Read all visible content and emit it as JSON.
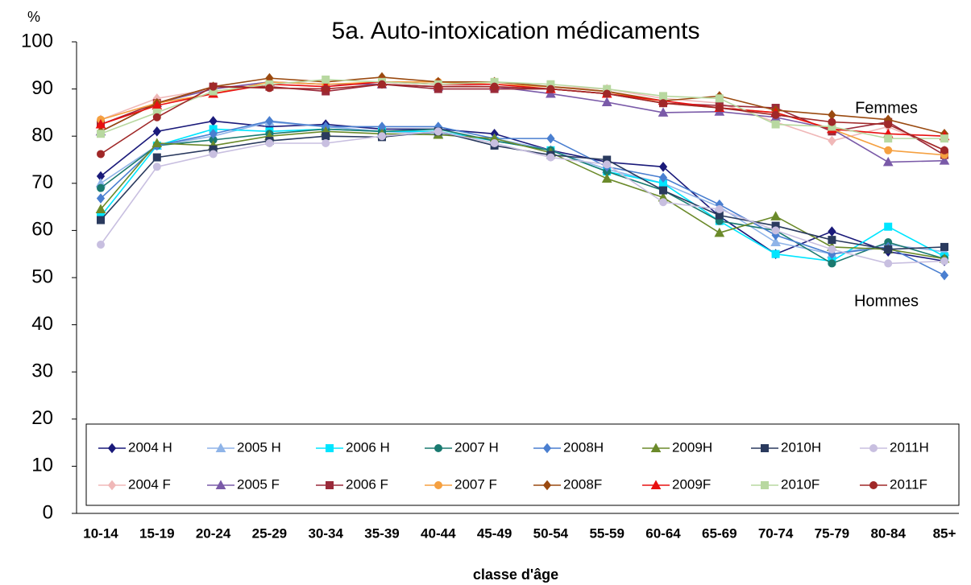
{
  "chart_data": {
    "type": "line",
    "title": "5a. Auto-intoxication médicaments",
    "y_label": "%",
    "x_label": "classe d'âge",
    "annotations": [
      "Femmes",
      "Hommes"
    ],
    "categories": [
      "10-14",
      "15-19",
      "20-24",
      "25-29",
      "30-34",
      "35-39",
      "40-44",
      "45-49",
      "50-54",
      "55-59",
      "60-64",
      "65-69",
      "70-74",
      "75-79",
      "80-84",
      "85+"
    ],
    "ylim": [
      0,
      100
    ],
    "yticks": [
      0,
      10,
      20,
      30,
      40,
      50,
      60,
      70,
      80,
      90,
      100
    ],
    "legend": "bottom",
    "series": [
      {
        "name": "2004 H",
        "color": "#1a1a7a",
        "marker": "diamond",
        "values": [
          71.5,
          81,
          83.2,
          82,
          82.5,
          81.5,
          81.5,
          80.5,
          77,
          74.5,
          73.5,
          63,
          55,
          59.8,
          55.5,
          53.5
        ]
      },
      {
        "name": "2005 H",
        "color": "#8fb4e8",
        "marker": "triangle",
        "values": [
          70,
          78,
          80,
          83,
          82,
          81,
          80.5,
          79.5,
          77,
          73,
          70,
          65,
          57.5,
          55,
          57,
          55.5
        ]
      },
      {
        "name": "2006 H",
        "color": "#00e5ff",
        "marker": "square",
        "values": [
          63,
          78,
          81.5,
          81,
          81.5,
          81,
          81,
          79,
          77,
          72.5,
          70,
          62,
          55,
          53.5,
          60.8,
          54.5
        ]
      },
      {
        "name": "2007 H",
        "color": "#1a7a70",
        "marker": "circle",
        "values": [
          69,
          78,
          79.2,
          80.5,
          81.5,
          81,
          81.5,
          79,
          77,
          72.5,
          68.5,
          62,
          60,
          53,
          57.5,
          54
        ]
      },
      {
        "name": "2008H",
        "color": "#4a7fd0",
        "marker": "diamond",
        "values": [
          66.8,
          78,
          80.5,
          83.2,
          82,
          82,
          82,
          79.5,
          79.5,
          73.5,
          71.2,
          65.5,
          59,
          55,
          56.5,
          50.5
        ]
      },
      {
        "name": "2009H",
        "color": "#6b8a2a",
        "marker": "triangle",
        "values": [
          64.5,
          78.5,
          78,
          80,
          81,
          80.5,
          80.3,
          79.5,
          76.5,
          71,
          67,
          59.5,
          63,
          56.5,
          56,
          54
        ]
      },
      {
        "name": "2010H",
        "color": "#2a3a5e",
        "marker": "square",
        "values": [
          62.2,
          75.5,
          77.2,
          79,
          80,
          79.8,
          81,
          78,
          76,
          75,
          68.5,
          63.2,
          61,
          58,
          56,
          56.5
        ]
      },
      {
        "name": "2011H",
        "color": "#c8bfe0",
        "marker": "circle",
        "values": [
          57,
          73.5,
          76.2,
          78.5,
          78.5,
          80,
          81,
          78.5,
          75.5,
          74,
          66,
          64.5,
          60,
          56,
          53,
          53.5
        ]
      },
      {
        "name": "2004 F",
        "color": "#f0b8b8",
        "marker": "diamond",
        "values": [
          83.5,
          88,
          90,
          91.5,
          91,
          91,
          90.5,
          91,
          90.5,
          90,
          88,
          87,
          83,
          79,
          82,
          77
        ]
      },
      {
        "name": "2005 F",
        "color": "#7a5aa8",
        "marker": "triangle",
        "values": [
          81,
          87,
          90,
          91.5,
          91,
          91,
          90.5,
          90.5,
          89,
          87.2,
          85,
          85.2,
          84,
          81.5,
          74.5,
          74.8
        ]
      },
      {
        "name": "2006 F",
        "color": "#9a2a3a",
        "marker": "square",
        "values": [
          82.5,
          87,
          90.5,
          90.5,
          89.5,
          91,
          90,
          90,
          90,
          89,
          87,
          86.5,
          86,
          81,
          83,
          76
        ]
      },
      {
        "name": "2007 F",
        "color": "#f5a040",
        "marker": "circle",
        "values": [
          83.5,
          87,
          89,
          91.5,
          91,
          91.5,
          91.5,
          91,
          90.5,
          89.5,
          87,
          86,
          85,
          81.5,
          77,
          76
        ]
      },
      {
        "name": "2008F",
        "color": "#9a4a10",
        "marker": "diamond",
        "values": [
          81,
          87,
          90.5,
          92.3,
          91.5,
          92.5,
          91.5,
          91.5,
          90.5,
          89.5,
          87.5,
          88.5,
          85.5,
          84.5,
          83.5,
          80.5
        ]
      },
      {
        "name": "2009F",
        "color": "#e81010",
        "marker": "triangle",
        "values": [
          82.5,
          86.5,
          89,
          91,
          90.5,
          91.5,
          91,
          91,
          90,
          89,
          87.5,
          86,
          85,
          81.5,
          80.5,
          80
        ]
      },
      {
        "name": "2010F",
        "color": "#b8d8a0",
        "marker": "square",
        "values": [
          80.5,
          85,
          89.5,
          91,
          92,
          91.5,
          91,
          91.5,
          91,
          90,
          88.5,
          88,
          82.5,
          82,
          79.5,
          79.5
        ]
      },
      {
        "name": "2011F",
        "color": "#a02828",
        "marker": "circle",
        "values": [
          76.2,
          84,
          90.5,
          90.2,
          90,
          91,
          90.5,
          90.5,
          90,
          89,
          87,
          86,
          84.5,
          83,
          82.5,
          77
        ]
      }
    ]
  }
}
